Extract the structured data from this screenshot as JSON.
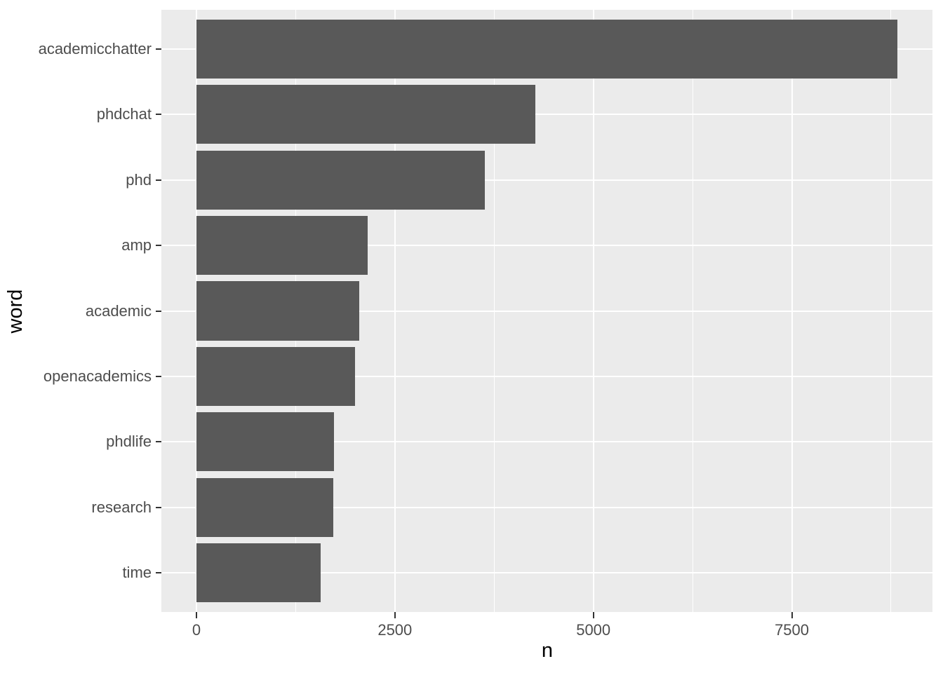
{
  "chart_data": {
    "type": "bar",
    "orientation": "horizontal",
    "title": "",
    "xlabel": "n",
    "ylabel": "word",
    "categories": [
      "academicchatter",
      "phdchat",
      "phd",
      "amp",
      "academic",
      "openacademics",
      "phdlife",
      "research",
      "time"
    ],
    "values": [
      8830,
      4265,
      3630,
      2160,
      2050,
      2000,
      1735,
      1720,
      1565
    ],
    "x_ticks": [
      0,
      2500,
      5000,
      7500
    ],
    "x_tick_labels": [
      "0",
      "2500",
      "5000",
      "7500"
    ],
    "x_minor_gridlines": [
      1250,
      3750,
      6250,
      8750
    ],
    "xlim": [
      0,
      8830
    ],
    "xlim_expansion": 0.05,
    "bar_width_fraction": 0.9,
    "y_expansion_units": 0.6,
    "grid": "major+minor",
    "legend": "none",
    "style": {
      "figure_background": "#FFFFFF",
      "panel_background": "#EBEBEB",
      "bar_fill": "#595959",
      "gridline_color": "#FFFFFF",
      "tick_mark_color": "#333333",
      "tick_label_color": "#4D4D4D",
      "axis_title_color": "#000000"
    }
  }
}
